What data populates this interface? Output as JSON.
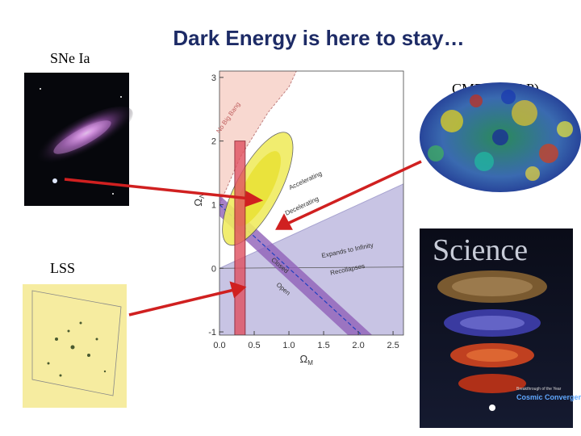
{
  "slide": {
    "title": "Dark Energy is here to stay…",
    "labels": {
      "sne": "SNe Ia",
      "cmb": "CMB(WMAP)",
      "lss": "LSS"
    },
    "plot": {
      "x_label": {
        "symbol": "Ω",
        "subscript": "M"
      },
      "y_label": {
        "symbol": "Ω",
        "subscript": "Λ"
      },
      "xlim": [
        0,
        2.65
      ],
      "ylim": [
        -1.05,
        3.1
      ],
      "xticks": [
        {
          "value": 0,
          "label": "0.0"
        },
        0.5,
        {
          "value": 1,
          "label": "1.0"
        },
        1.5,
        {
          "value": 2,
          "label": "2.0"
        },
        2.5
      ],
      "yticks": [
        -1,
        0,
        1,
        2,
        3
      ],
      "regions": [
        "No Big Bang",
        "Accelerating",
        "Decelerating",
        "Expands to Infinity",
        "Recollapses",
        "Closed",
        "Open"
      ]
    },
    "science_cover": {
      "masthead": "Science",
      "subtitle": "Breakthrough of the Year",
      "headline": "Cosmic Convergence"
    }
  }
}
